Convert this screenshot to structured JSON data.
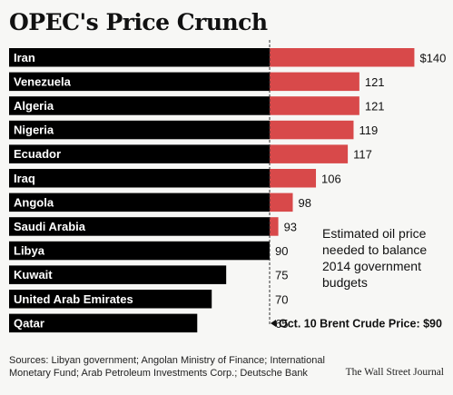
{
  "chart_data": {
    "type": "bar",
    "title": "OPEC's Price Crunch",
    "categories": [
      "Iran",
      "Venezuela",
      "Algeria",
      "Nigeria",
      "Ecuador",
      "Iraq",
      "Angola",
      "Saudi Arabia",
      "Libya",
      "Kuwait",
      "United Arab Emirates",
      "Qatar"
    ],
    "values": [
      140,
      121,
      121,
      119,
      117,
      106,
      98,
      93,
      90,
      75,
      70,
      65
    ],
    "value_labels": [
      "$140",
      "121",
      "121",
      "119",
      "117",
      "106",
      "98",
      "93",
      "90",
      "75",
      "70",
      "65"
    ],
    "reference_line": {
      "value": 90,
      "label": "Oct. 10 Brent Crude Price: $90"
    },
    "annotation": [
      "Estimated oil price",
      "needed to balance",
      "2014 government",
      "budgets"
    ],
    "bar_color_below": "#000000",
    "bar_color_above": "#d8494a"
  },
  "footer": {
    "source": "Sources: Libyan government; Angolan Ministry of Finance; International Monetary Fund; Arab Petroleum Investments Corp.; Deutsche Bank",
    "credit": "The Wall Street Journal"
  }
}
